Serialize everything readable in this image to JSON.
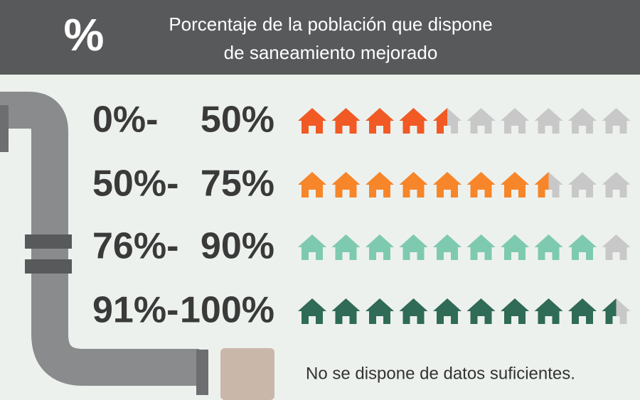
{
  "header": {
    "symbol": "%",
    "title_lines": [
      "Porcentaje de la población que dispone",
      "de saneamiento mejorado"
    ]
  },
  "rows": [
    {
      "label": [
        "0%-",
        "50%"
      ],
      "color": "#f15a24",
      "filled": 4.5,
      "total": 10
    },
    {
      "label": [
        "50%-",
        "75%"
      ],
      "color": "#f7862a",
      "filled": 7.5,
      "total": 10
    },
    {
      "label": [
        "76%-",
        "90%"
      ],
      "color": "#7ecab0",
      "filled": 9,
      "total": 10
    },
    {
      "label": [
        "91%-",
        "100%"
      ],
      "color": "#2f6b57",
      "filled": 9.5,
      "total": 10
    }
  ],
  "empty_color": "#c8c8c8",
  "no_data": {
    "label": "No se dispone de datos suficientes.",
    "color": "#c9b8aa"
  }
}
